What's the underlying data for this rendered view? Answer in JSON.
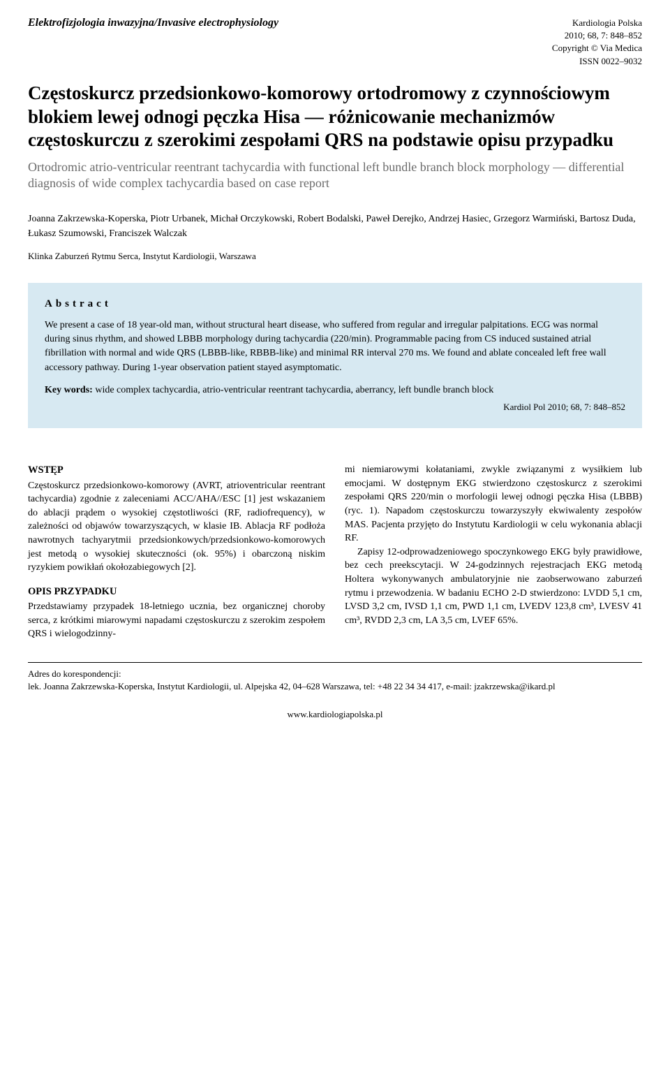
{
  "header": {
    "section_name": "Elektrofizjologia inwazyjna/Invasive electrophysiology",
    "journal_line1": "Kardiologia Polska",
    "journal_line2": "2010; 68, 7: 848–852",
    "journal_line3": "Copyright © Via Medica",
    "journal_line4": "ISSN 0022–9032"
  },
  "title": {
    "pl": "Częstoskurcz przedsionkowo-komorowy ortodromowy z czynnościowym blokiem lewej odnogi pęczka Hisa — różnicowanie mechanizmów częstoskurczu z szerokimi zespołami QRS na podstawie opisu przypadku",
    "en": "Ortodromic atrio-ventricular reentrant tachycardia with functional left bundle branch block morphology — differential diagnosis of wide complex tachycardia based on case report"
  },
  "authors": "Joanna Zakrzewska-Koperska, Piotr Urbanek, Michał Orczykowski, Robert Bodalski, Paweł Derejko, Andrzej Hasiec, Grzegorz Warmiński, Bartosz Duda, Łukasz Szumowski, Franciszek Walczak",
  "affiliation": "Klinka Zaburzeń Rytmu Serca, Instytut Kardiologii, Warszawa",
  "abstract": {
    "heading": "Abstract",
    "text": "We present a case of 18 year-old man, without structural heart disease, who suffered from regular and irregular palpitations. ECG was normal during sinus rhythm, and showed LBBB morphology during tachycardia (220/min). Programmable pacing from CS induced sustained atrial fibrillation with normal and wide QRS (LBBB-like, RBBB-like) and minimal RR interval 270 ms. We found and ablate concealed left free wall accessory pathway. During 1-year observation patient stayed asymptomatic.",
    "keywords_label": "Key words:",
    "keywords": " wide complex tachycardia, atrio-ventricular reentrant tachycardia, aberrancy, left bundle branch block",
    "reference": "Kardiol Pol 2010; 68, 7: 848–852"
  },
  "body": {
    "wstep_heading": "WSTĘP",
    "wstep_text": "Częstoskurcz przedsionkowo-komorowy (AVRT, atrioventricular reentrant tachycardia) zgodnie z zaleceniami ACC/AHA//ESC [1] jest wskazaniem do ablacji prądem o wysokiej częstotliwości (RF, radiofrequency), w zależności od objawów towarzyszących, w klasie IB. Ablacja RF podłoża nawrotnych tachyarytmii przedsionkowych/przedsionkowo-komorowych jest metodą o wysokiej skuteczności (ok. 95%) i obarczoną niskim ryzykiem powikłań okołozabiegowych [2].",
    "opis_heading": "OPIS PRZYPADKU",
    "opis_text": "Przedstawiamy przypadek 18-letniego ucznia, bez organicznej choroby serca, z krótkimi miarowymi napadami częstoskurczu z szerokim zespołem QRS i wielogodzinny-",
    "col2_p1": "mi niemiarowymi kołataniami, zwykle związanymi z wysiłkiem lub emocjami. W dostępnym EKG stwierdzono częstoskurcz z szerokimi zespołami QRS 220/min o morfologii lewej odnogi pęczka Hisa (LBBB) (ryc. 1). Napadom częstoskurczu towarzyszyły ekwiwalenty zespołów MAS. Pacjenta przyjęto do Instytutu Kardiologii w celu wykonania ablacji RF.",
    "col2_p2": "Zapisy 12-odprowadzeniowego spoczynkowego EKG były prawidłowe, bez cech preekscytacji. W 24-godzinnych rejestracjach EKG metodą Holtera wykonywanych ambulatoryjnie nie zaobserwowano zaburzeń rytmu i przewodzenia. W badaniu ECHO 2-D stwierdzono: LVDD 5,1 cm, LVSD 3,2 cm, IVSD 1,1 cm, PWD 1,1 cm, LVEDV 123,8 cm³, LVESV 41 cm³, RVDD 2,3 cm, LA 3,5 cm, LVEF 65%."
  },
  "correspondence": {
    "label": "Adres do korespondencji:",
    "text": "lek. Joanna Zakrzewska-Koperska, Instytut Kardiologii, ul. Alpejska 42, 04–628 Warszawa, tel: +48 22 34 34 417, e-mail: jzakrzewska@ikard.pl"
  },
  "footer": {
    "url": "www.kardiologiapolska.pl"
  }
}
